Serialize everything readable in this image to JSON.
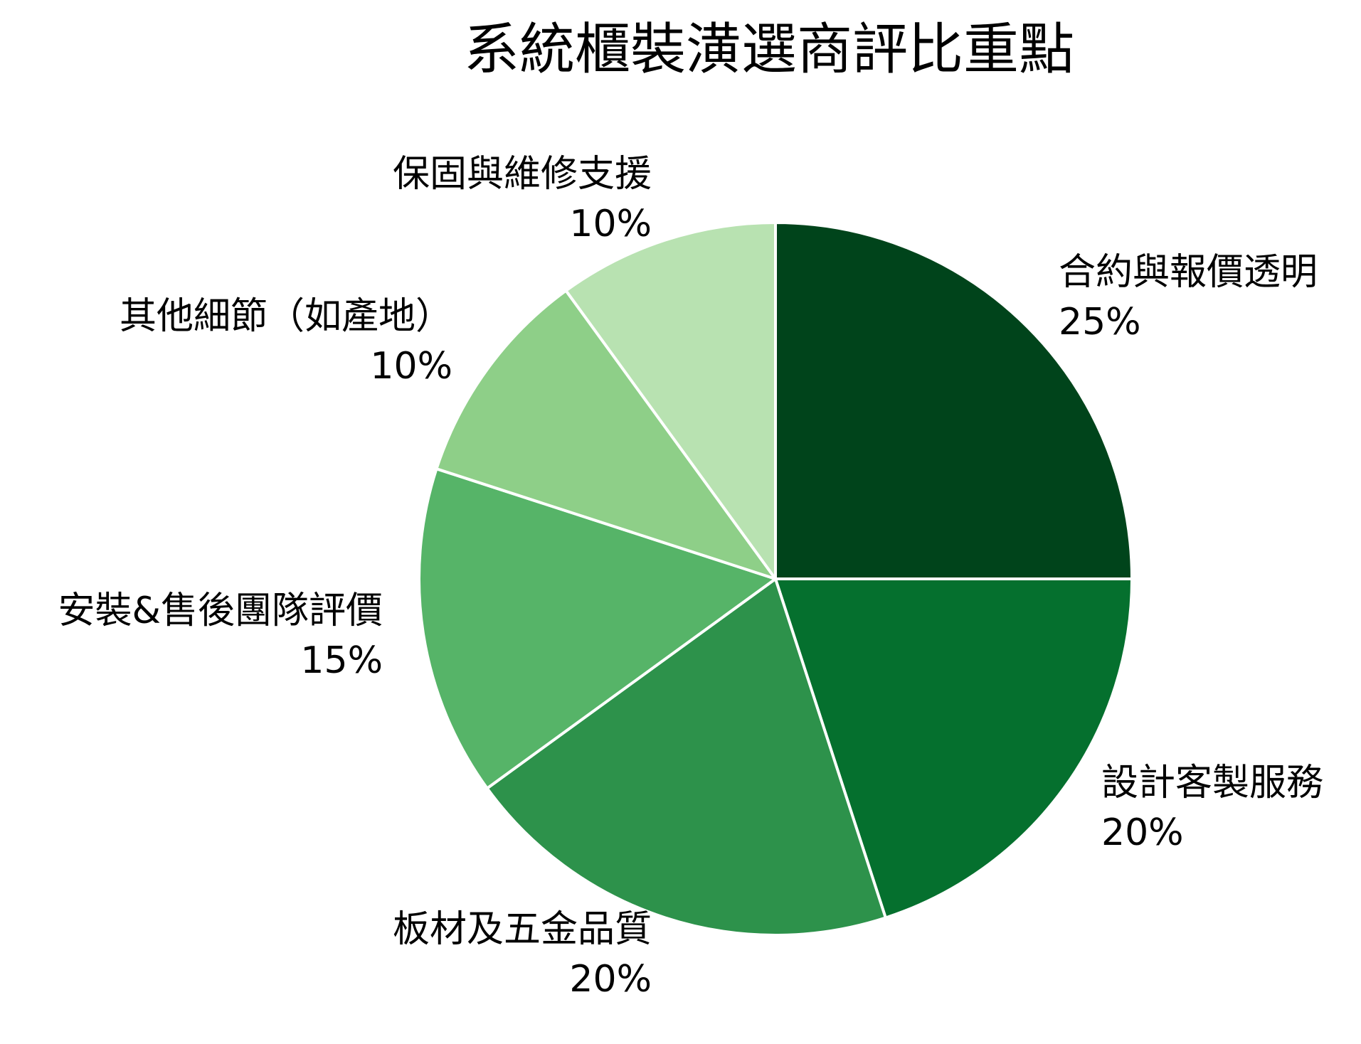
{
  "chart_data": {
    "type": "pie",
    "title": "系統櫃裝潢選商評比重點",
    "slices": [
      {
        "label": "合約與報價透明",
        "value": 25,
        "value_label": "25%",
        "color": "#00441b"
      },
      {
        "label": "設計客製服務",
        "value": 20,
        "value_label": "20%",
        "color": "#05702e"
      },
      {
        "label": "板材及五金品質",
        "value": 20,
        "value_label": "20%",
        "color": "#2d924b"
      },
      {
        "label": "安裝&售後團隊評價",
        "value": 15,
        "value_label": "15%",
        "color": "#56b468"
      },
      {
        "label": "其他細節（如產地）",
        "value": 10,
        "value_label": "10%",
        "color": "#8ecf88"
      },
      {
        "label": "保固與維修支援",
        "value": 10,
        "value_label": "10%",
        "color": "#b8e2b1"
      }
    ],
    "start_angle": "12 o'clock",
    "direction": "clockwise",
    "legend": "none"
  }
}
